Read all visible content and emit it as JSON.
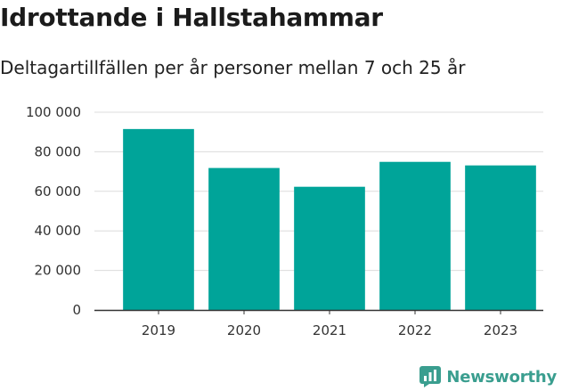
{
  "title": "Idrottande i Hallstahammar",
  "subtitle": "Deltagartillfällen per år personer mellan 7 och 25 år",
  "brand": {
    "name": "Newsworthy",
    "icon": "newsworthy-logo-icon"
  },
  "colors": {
    "bar": "#00a499",
    "grid": "#dcdcdc",
    "axis": "#333333",
    "brand": "#3a9e8f"
  },
  "chart_data": {
    "type": "bar",
    "categories": [
      "2019",
      "2020",
      "2021",
      "2022",
      "2023"
    ],
    "values": [
      91500,
      71800,
      62300,
      74900,
      73100
    ],
    "ylim": [
      0,
      100000
    ],
    "yticks": [
      0,
      20000,
      40000,
      60000,
      80000,
      100000
    ],
    "ytick_labels": [
      "0",
      "20 000",
      "40 000",
      "60 000",
      "80 000",
      "100 000"
    ],
    "xlabel": "",
    "ylabel": "",
    "grid": true,
    "legend": "none"
  }
}
